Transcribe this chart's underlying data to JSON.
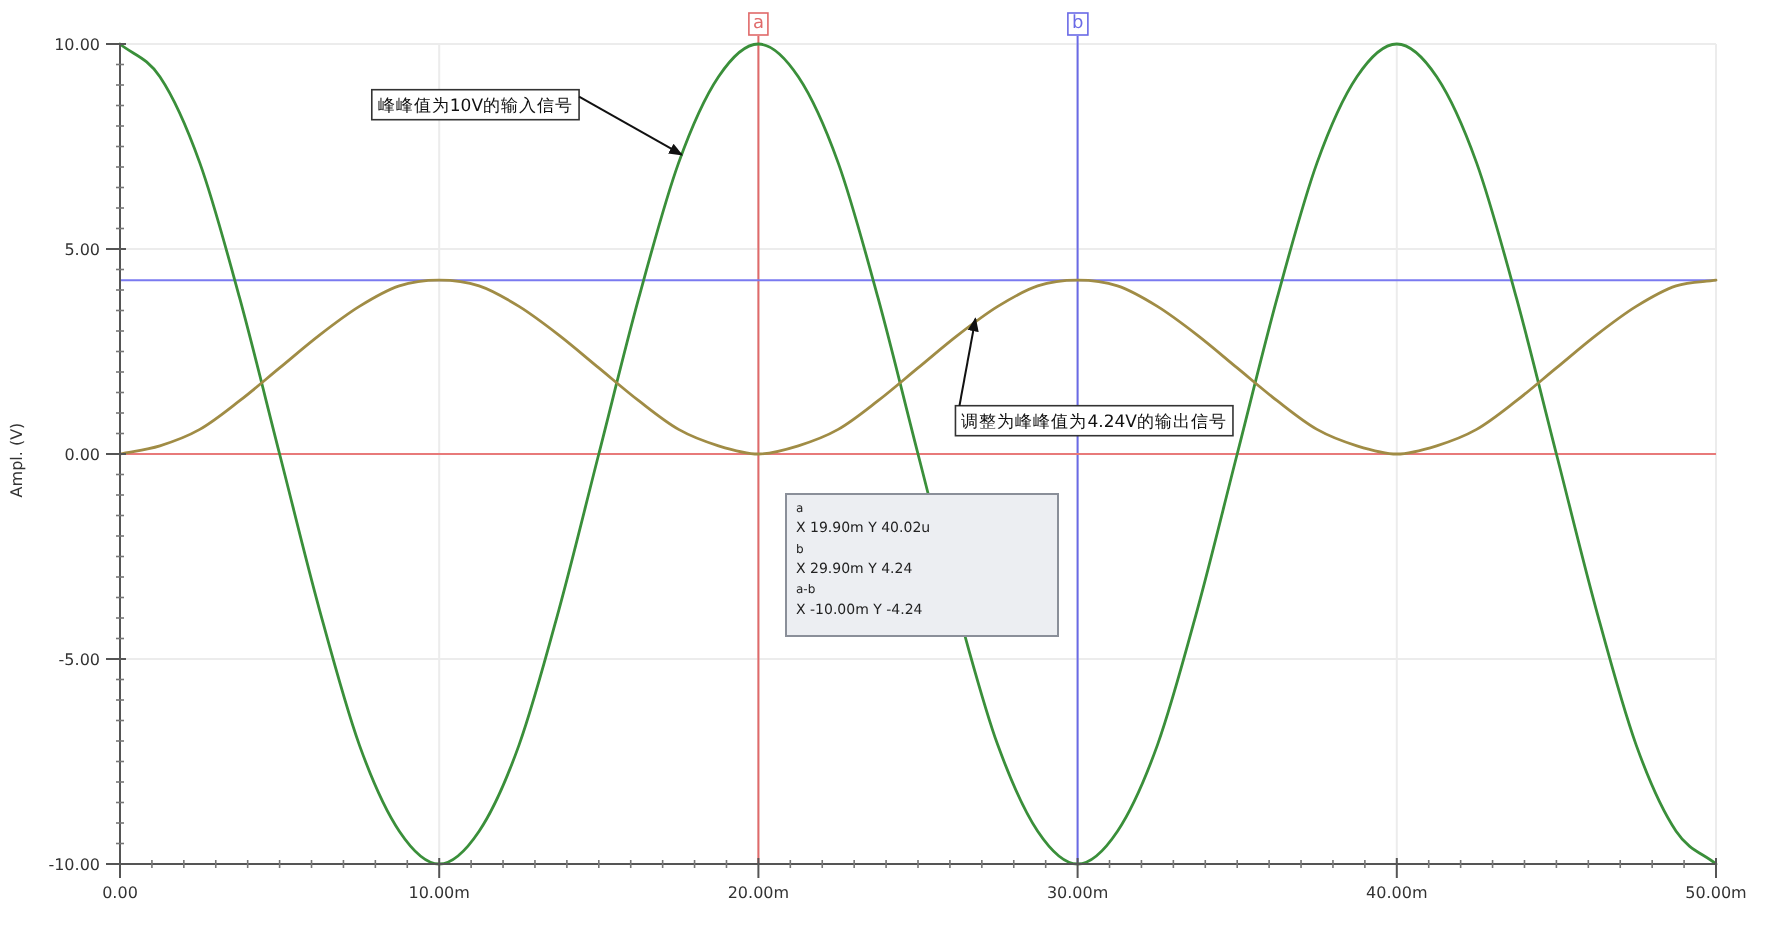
{
  "chart_data": {
    "type": "line",
    "ylabel": "Ampl. (V)",
    "x": [
      0,
      1.25,
      2.5,
      3.75,
      5,
      6.25,
      7.5,
      8.75,
      10,
      11.25,
      12.5,
      13.75,
      15,
      16.25,
      17.5,
      18.75,
      20,
      21.25,
      22.5,
      23.75,
      25,
      26.25,
      27.5,
      28.75,
      30,
      31.25,
      32.5,
      33.75,
      35,
      36.25,
      37.5,
      38.75,
      40,
      41.25,
      42.5,
      43.75,
      45,
      46.25,
      47.5,
      48.75,
      50
    ],
    "series": [
      {
        "color": "#3a8f3a",
        "x": [
          0,
          1.25,
          2.5,
          3.75,
          5,
          6.25,
          7.5,
          8.75,
          10,
          11.25,
          12.5,
          13.75,
          15,
          16.25,
          17.5,
          18.75,
          20,
          21.25,
          22.5,
          23.75,
          25,
          26.6,
          27.5,
          28.75,
          30,
          31.25,
          32.5,
          33.75,
          35,
          36.25,
          37.5,
          38.75,
          40,
          41.25,
          42.5,
          43.75,
          45,
          46.25,
          47.5,
          48.75,
          50
        ],
        "values": [
          10,
          9.2,
          7.1,
          3.8,
          0,
          -3.8,
          -7.1,
          -9.2,
          -10,
          -9.2,
          -7.1,
          -3.8,
          0,
          3.8,
          7.1,
          9.2,
          10,
          9.2,
          7.1,
          3.8,
          0,
          -4.8,
          -7.1,
          -9.2,
          -10,
          -9.2,
          -7.1,
          -3.8,
          0,
          3.8,
          7.1,
          9.2,
          10,
          9.2,
          7.1,
          3.8,
          0,
          -3.8,
          -7.1,
          -9.2,
          -10
        ]
      },
      {
        "color": "#a08c45",
        "values": [
          0,
          0.2,
          0.6,
          1.3,
          2.1,
          2.9,
          3.6,
          4.1,
          4.24,
          4.1,
          3.6,
          2.9,
          2.1,
          1.3,
          0.6,
          0.2,
          0,
          0.2,
          0.6,
          1.3,
          2.1,
          2.9,
          3.6,
          4.1,
          4.24,
          4.1,
          3.6,
          2.9,
          2.1,
          1.3,
          0.6,
          0.2,
          0,
          0.2,
          0.6,
          1.3,
          2.1,
          2.9,
          3.6,
          4.1,
          4.24
        ]
      }
    ],
    "xlim": [
      0,
      50
    ],
    "ylim": [
      -10,
      10
    ],
    "xticks": [
      {
        "value": 0,
        "label": "0.00"
      },
      {
        "value": 1,
        "label": null
      },
      {
        "value": 2,
        "label": null
      },
      {
        "value": 3,
        "label": null
      },
      {
        "value": 4,
        "label": null
      },
      {
        "value": 5,
        "label": null
      },
      {
        "value": 6,
        "label": null
      },
      {
        "value": 7,
        "label": null
      },
      {
        "value": 8,
        "label": null
      },
      {
        "value": 9,
        "label": null
      },
      {
        "value": 10,
        "label": "10.00m"
      },
      {
        "value": 11,
        "label": null
      },
      {
        "value": 12,
        "label": null
      },
      {
        "value": 13,
        "label": null
      },
      {
        "value": 14,
        "label": null
      },
      {
        "value": 15,
        "label": null
      },
      {
        "value": 16,
        "label": null
      },
      {
        "value": 17,
        "label": null
      },
      {
        "value": 18,
        "label": null
      },
      {
        "value": 19,
        "label": null
      },
      {
        "value": 20,
        "label": "20.00m"
      },
      {
        "value": 21,
        "label": null
      },
      {
        "value": 22,
        "label": null
      },
      {
        "value": 23,
        "label": null
      },
      {
        "value": 24,
        "label": null
      },
      {
        "value": 25,
        "label": null
      },
      {
        "value": 26,
        "label": null
      },
      {
        "value": 27,
        "label": null
      },
      {
        "value": 28,
        "label": null
      },
      {
        "value": 29,
        "label": null
      },
      {
        "value": 30,
        "label": "30.00m"
      },
      {
        "value": 31,
        "label": null
      },
      {
        "value": 32,
        "label": null
      },
      {
        "value": 33,
        "label": null
      },
      {
        "value": 34,
        "label": null
      },
      {
        "value": 35,
        "label": null
      },
      {
        "value": 36,
        "label": null
      },
      {
        "value": 37,
        "label": null
      },
      {
        "value": 38,
        "label": null
      },
      {
        "value": 39,
        "label": null
      },
      {
        "value": 40,
        "label": "40.00m"
      },
      {
        "value": 41,
        "label": null
      },
      {
        "value": 42,
        "label": null
      },
      {
        "value": 43,
        "label": null
      },
      {
        "value": 44,
        "label": null
      },
      {
        "value": 45,
        "label": null
      },
      {
        "value": 46,
        "label": null
      },
      {
        "value": 47,
        "label": null
      },
      {
        "value": 48,
        "label": null
      },
      {
        "value": 49,
        "label": null
      },
      {
        "value": 50,
        "label": "50.00m"
      }
    ],
    "yticks": [
      {
        "value": -10,
        "label": "-10.00"
      },
      {
        "value": -9.5,
        "label": null
      },
      {
        "value": -9,
        "label": null
      },
      {
        "value": -8.5,
        "label": null
      },
      {
        "value": -8,
        "label": null
      },
      {
        "value": -7.5,
        "label": null
      },
      {
        "value": -7,
        "label": null
      },
      {
        "value": -6.5,
        "label": null
      },
      {
        "value": -6,
        "label": null
      },
      {
        "value": -5.5,
        "label": null
      },
      {
        "value": -5,
        "label": "-5.00"
      },
      {
        "value": -4.5,
        "label": null
      },
      {
        "value": -4,
        "label": null
      },
      {
        "value": -3.5,
        "label": null
      },
      {
        "value": -3,
        "label": null
      },
      {
        "value": -2.5,
        "label": null
      },
      {
        "value": -2,
        "label": null
      },
      {
        "value": -1.5,
        "label": null
      },
      {
        "value": -1,
        "label": null
      },
      {
        "value": -0.5,
        "label": null
      },
      {
        "value": 0,
        "label": "0.00"
      },
      {
        "value": 0.5,
        "label": null
      },
      {
        "value": 1,
        "label": null
      },
      {
        "value": 1.5,
        "label": null
      },
      {
        "value": 2,
        "label": null
      },
      {
        "value": 2.5,
        "label": null
      },
      {
        "value": 3,
        "label": null
      },
      {
        "value": 3.5,
        "label": null
      },
      {
        "value": 4,
        "label": null
      },
      {
        "value": 4.5,
        "label": null
      },
      {
        "value": 5,
        "label": "5.00"
      },
      {
        "value": 5.5,
        "label": null
      },
      {
        "value": 6,
        "label": null
      },
      {
        "value": 6.5,
        "label": null
      },
      {
        "value": 7,
        "label": null
      },
      {
        "value": 7.5,
        "label": null
      },
      {
        "value": 8,
        "label": null
      },
      {
        "value": 8.5,
        "label": null
      },
      {
        "value": 9,
        "label": null
      },
      {
        "value": 9.5,
        "label": null
      },
      {
        "value": 10,
        "label": "10.00"
      }
    ],
    "grid": true,
    "ref_lines": [
      {
        "axis": "x",
        "value": 20,
        "label": "a",
        "color": "#e06a6a"
      },
      {
        "axis": "x",
        "value": 30,
        "label": "b",
        "color": "#6a6ae6"
      },
      {
        "axis": "y",
        "value": 4.24,
        "color": "#7a7af0"
      },
      {
        "axis": "y",
        "value": 0,
        "color": "#e87a7a"
      }
    ],
    "annotations": [
      {
        "text": "峰峰值为10V的输入信号",
        "x": 17.6,
        "y": 7.3
      },
      {
        "text": "调整为峰峰值为4.24V的输出信号",
        "x": 26.8,
        "y": 3.3
      },
      "a",
      "X 19.90m   Y 40.02u",
      "b",
      "X 29.90m   Y 4.24",
      "a-b",
      "X -10.00m   Y -4.24"
    ]
  }
}
